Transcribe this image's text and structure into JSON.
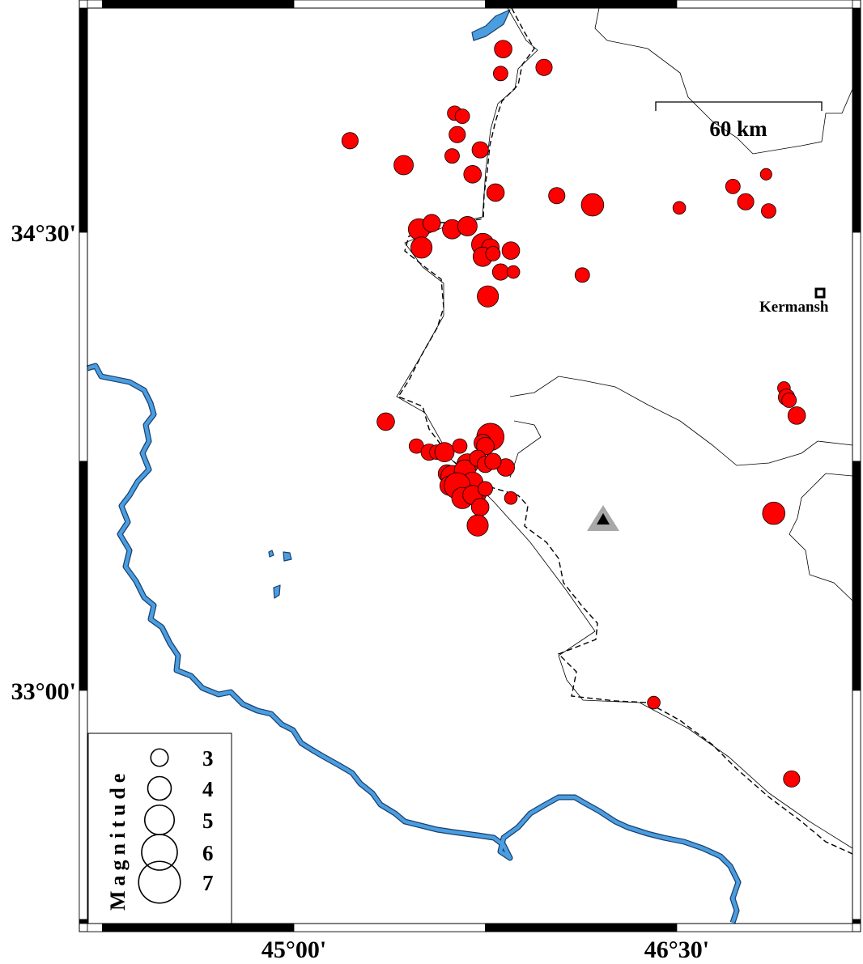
{
  "map": {
    "extent": {
      "lon": [
        44.16,
        47.22
      ],
      "lat": [
        32.22,
        35.25
      ]
    },
    "lon_ticks": [
      {
        "value": 45.0,
        "label": "45°00'"
      },
      {
        "value": 46.5,
        "label": "46°30'"
      }
    ],
    "lat_ticks": [
      {
        "value": 34.5,
        "label": "34°30'"
      },
      {
        "value": 33.0,
        "label": "33°00'"
      }
    ],
    "frame_interval_deg": 0.75,
    "scale_bar": {
      "label": "60 km",
      "length_km": 60
    },
    "city": {
      "name": "Kermanshah",
      "shown_label": "Kermansh",
      "lon": 47.06,
      "lat": 34.3
    },
    "station": {
      "symbol": "triangle",
      "lon": 46.21,
      "lat": 33.56
    },
    "colors": {
      "event_fill": "#ff0000",
      "river": "#4a9ee0",
      "border": "#000000",
      "station_outer": "#a8a8a8",
      "station_inner": "#000000"
    }
  },
  "legend": {
    "title": "Magnitude",
    "items": [
      {
        "mag": 3,
        "label": "3"
      },
      {
        "mag": 4,
        "label": "4"
      },
      {
        "mag": 5,
        "label": "5"
      },
      {
        "mag": 6,
        "label": "6"
      },
      {
        "mag": 7,
        "label": "7"
      }
    ]
  },
  "events": [
    [
      45.82,
      35.1,
      2.9
    ],
    [
      45.81,
      35.02,
      2.4
    ],
    [
      45.98,
      35.04,
      2.7
    ],
    [
      45.63,
      34.89,
      2.4
    ],
    [
      45.66,
      34.88,
      2.4
    ],
    [
      45.64,
      34.82,
      2.7
    ],
    [
      45.22,
      34.8,
      2.7
    ],
    [
      45.73,
      34.77,
      2.7
    ],
    [
      45.62,
      34.75,
      2.4
    ],
    [
      45.43,
      34.72,
      3.2
    ],
    [
      45.7,
      34.69,
      2.9
    ],
    [
      45.79,
      34.63,
      2.9
    ],
    [
      46.03,
      34.62,
      2.7
    ],
    [
      46.17,
      34.59,
      3.7
    ],
    [
      46.51,
      34.58,
      2.1
    ],
    [
      46.72,
      34.65,
      2.4
    ],
    [
      46.85,
      34.69,
      1.9
    ],
    [
      46.77,
      34.6,
      2.7
    ],
    [
      46.86,
      34.57,
      2.4
    ],
    [
      45.49,
      34.51,
      3.5
    ],
    [
      45.54,
      34.53,
      2.9
    ],
    [
      45.62,
      34.51,
      3.2
    ],
    [
      45.68,
      34.52,
      3.2
    ],
    [
      45.5,
      34.45,
      3.5
    ],
    [
      45.74,
      34.46,
      3.7
    ],
    [
      45.77,
      34.45,
      2.9
    ],
    [
      45.85,
      34.44,
      2.9
    ],
    [
      45.74,
      34.42,
      3.2
    ],
    [
      45.78,
      34.43,
      2.4
    ],
    [
      45.81,
      34.37,
      2.7
    ],
    [
      45.86,
      34.37,
      2.1
    ],
    [
      45.76,
      34.29,
      3.5
    ],
    [
      46.13,
      34.36,
      2.4
    ],
    [
      46.92,
      33.99,
      2.1
    ],
    [
      46.93,
      33.96,
      2.7
    ],
    [
      46.94,
      33.95,
      2.4
    ],
    [
      46.97,
      33.9,
      2.9
    ],
    [
      45.36,
      33.88,
      2.9
    ],
    [
      45.48,
      33.8,
      2.4
    ],
    [
      45.53,
      33.78,
      2.7
    ],
    [
      45.56,
      33.78,
      2.4
    ],
    [
      45.59,
      33.78,
      3.2
    ],
    [
      45.65,
      33.8,
      2.4
    ],
    [
      45.77,
      33.83,
      4.5
    ],
    [
      45.74,
      33.81,
      2.9
    ],
    [
      45.75,
      33.8,
      2.9
    ],
    [
      45.83,
      33.73,
      2.9
    ],
    [
      45.68,
      33.74,
      3.5
    ],
    [
      45.6,
      33.71,
      2.9
    ],
    [
      45.62,
      33.7,
      3.7
    ],
    [
      45.67,
      33.72,
      3.5
    ],
    [
      45.72,
      33.76,
      2.7
    ],
    [
      45.75,
      33.74,
      2.7
    ],
    [
      45.78,
      33.75,
      2.7
    ],
    [
      45.7,
      33.68,
      3.5
    ],
    [
      45.61,
      33.67,
      3.2
    ],
    [
      45.64,
      33.67,
      4.3
    ],
    [
      45.66,
      33.63,
      3.5
    ],
    [
      45.72,
      33.64,
      2.7
    ],
    [
      45.7,
      33.64,
      3.2
    ],
    [
      45.75,
      33.66,
      2.4
    ],
    [
      45.85,
      33.63,
      2.1
    ],
    [
      45.73,
      33.6,
      2.9
    ],
    [
      45.72,
      33.54,
      3.5
    ],
    [
      46.88,
      33.58,
      3.7
    ],
    [
      46.41,
      32.96,
      2.1
    ],
    [
      46.95,
      32.71,
      2.7
    ]
  ]
}
